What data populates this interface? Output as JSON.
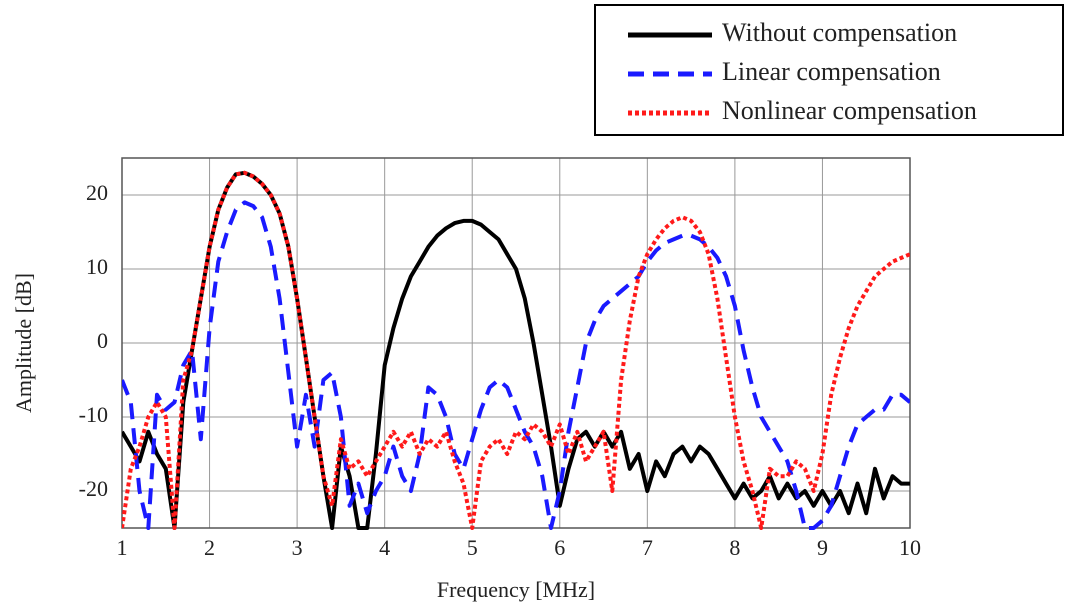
{
  "chart_data": {
    "type": "line",
    "xlabel": "Frequency [MHz]",
    "ylabel": "Amplitude [dB]",
    "x": [
      1,
      1.1,
      1.2,
      1.3,
      1.4,
      1.5,
      1.6,
      1.7,
      1.8,
      1.9,
      2,
      2.1,
      2.2,
      2.3,
      2.4,
      2.5,
      2.6,
      2.7,
      2.8,
      2.9,
      3,
      3.1,
      3.2,
      3.3,
      3.4,
      3.5,
      3.6,
      3.7,
      3.8,
      3.9,
      4,
      4.1,
      4.2,
      4.3,
      4.4,
      4.5,
      4.6,
      4.7,
      4.8,
      4.9,
      5,
      5.1,
      5.2,
      5.3,
      5.4,
      5.5,
      5.6,
      5.7,
      5.8,
      5.9,
      6,
      6.1,
      6.2,
      6.3,
      6.4,
      6.5,
      6.6,
      6.7,
      6.8,
      6.9,
      7,
      7.1,
      7.2,
      7.3,
      7.4,
      7.5,
      7.6,
      7.7,
      7.8,
      7.9,
      8,
      8.1,
      8.2,
      8.3,
      8.4,
      8.5,
      8.6,
      8.7,
      8.8,
      8.9,
      9,
      9.1,
      9.2,
      9.3,
      9.4,
      9.5,
      9.6,
      9.7,
      9.8,
      9.9,
      10
    ],
    "series": [
      {
        "name": "Without compensation",
        "color": "#000000",
        "linestyle": "solid",
        "values": [
          -12,
          -14,
          -16,
          -12,
          -15,
          -17,
          -25,
          -8,
          -1,
          6,
          13,
          18,
          21,
          22.8,
          23,
          22.5,
          21.5,
          20,
          17.5,
          13,
          6,
          -2,
          -10,
          -18,
          -25,
          -14,
          -18,
          -25,
          -25,
          -15,
          -3,
          2,
          6,
          9,
          11,
          13,
          14.5,
          15.5,
          16.2,
          16.5,
          16.5,
          16,
          15,
          14,
          12,
          10,
          6,
          0,
          -7,
          -14,
          -22,
          -17,
          -13,
          -12,
          -14,
          -12,
          -14,
          -12,
          -17,
          -15,
          -20,
          -16,
          -18,
          -15,
          -14,
          -16,
          -14,
          -15,
          -17,
          -19,
          -21,
          -19,
          -21,
          -20,
          -18,
          -21,
          -19,
          -21,
          -20,
          -22,
          -20,
          -22,
          -20,
          -23,
          -19,
          -23,
          -17,
          -21,
          -18,
          -19,
          -19
        ]
      },
      {
        "name": "Linear compensation",
        "color": "#1a1aff",
        "linestyle": "dashed",
        "values": [
          -5,
          -8,
          -20,
          -25,
          -7,
          -9,
          -8,
          -3,
          -1,
          -13,
          2,
          11,
          15,
          18,
          19,
          18.5,
          17,
          13,
          6,
          -4,
          -14,
          -7,
          -14,
          -5,
          -4,
          -10,
          -22,
          -19,
          -23,
          -20,
          -18,
          -14,
          -18,
          -20,
          -15,
          -6,
          -7,
          -10,
          -15,
          -17,
          -13,
          -9,
          -6,
          -5,
          -6,
          -9,
          -12,
          -14,
          -18,
          -25,
          -20,
          -12,
          -6,
          0,
          3,
          5,
          6,
          7,
          8,
          9,
          11,
          12.5,
          13.5,
          14,
          14.5,
          14.5,
          14,
          13,
          11.5,
          9,
          5,
          -1,
          -6,
          -10,
          -12,
          -14,
          -16,
          -20,
          -25,
          -25,
          -24,
          -22,
          -18,
          -14,
          -11,
          -10,
          -9,
          -9,
          -7,
          -7,
          -8
        ]
      },
      {
        "name": "Nonlinear compensation",
        "color": "#ff1a1a",
        "linestyle": "dotted",
        "values": [
          -25,
          -17,
          -14,
          -10,
          -8,
          -10,
          -25,
          -5,
          -1,
          6,
          13,
          18,
          21,
          22.8,
          23,
          22.5,
          21.5,
          20,
          17.5,
          13,
          6,
          -2,
          -10,
          -18,
          -22,
          -13,
          -17,
          -16,
          -18,
          -16,
          -14,
          -12,
          -14,
          -12,
          -15,
          -13,
          -14,
          -12,
          -16,
          -19,
          -25,
          -16,
          -14,
          -13,
          -15,
          -12,
          -13,
          -11,
          -12,
          -14,
          -11,
          -15,
          -12,
          -16,
          -14,
          -12,
          -20,
          -5,
          3,
          9,
          12,
          14,
          15.5,
          16.5,
          17,
          16.5,
          15,
          12,
          6,
          -2,
          -10,
          -16,
          -20,
          -25,
          -17,
          -18,
          -18,
          -16,
          -17,
          -20,
          -15,
          -7,
          -2,
          2,
          5,
          7,
          9,
          10,
          11,
          11.5,
          12
        ]
      }
    ],
    "xlim": [
      1,
      10
    ],
    "ylim": [
      -25,
      25
    ],
    "xticks": [
      1,
      2,
      3,
      4,
      5,
      6,
      7,
      8,
      9,
      10
    ],
    "yticks": [
      -20,
      -10,
      0,
      10,
      20
    ],
    "grid": true,
    "legend": "upper right"
  }
}
